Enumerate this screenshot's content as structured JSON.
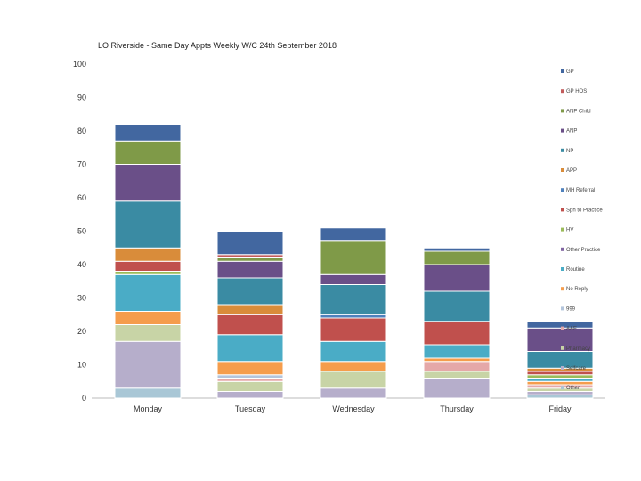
{
  "chart_data": {
    "type": "stacked-bar",
    "title": "LO Riverside - Same Day Appts Weekly W/C 24th September 2018",
    "xlabel": "",
    "ylabel": "",
    "ylim": [
      0,
      100
    ],
    "yticks": [
      0,
      10,
      20,
      30,
      40,
      50,
      60,
      70,
      80,
      90,
      100
    ],
    "grid": false,
    "legend": "right",
    "categories": [
      "Monday",
      "Tuesday",
      "Wednesday",
      "Thursday",
      "Friday"
    ],
    "series": [
      {
        "name": "Other",
        "color": "#a9c7d6",
        "values": [
          3,
          0,
          0,
          0,
          1
        ]
      },
      {
        "name": "Selfcare",
        "color": "#b6aecb",
        "values": [
          14,
          2,
          3,
          6,
          1
        ]
      },
      {
        "name": "Pharmacy",
        "color": "#c8d4a6",
        "values": [
          5,
          3,
          5,
          2,
          1
        ]
      },
      {
        "name": "A&E",
        "color": "#e5a8a8",
        "values": [
          0,
          1,
          0,
          3,
          1
        ]
      },
      {
        "name": "999",
        "color": "#b3c5dc",
        "values": [
          0,
          1,
          0,
          0,
          0
        ]
      },
      {
        "name": "No Reply",
        "color": "#f59d4c",
        "values": [
          4,
          4,
          3,
          1,
          1
        ]
      },
      {
        "name": "Routine",
        "color": "#4aacc6",
        "values": [
          11,
          8,
          6,
          4,
          1
        ]
      },
      {
        "name": "Other Practice",
        "color": "#8064a2",
        "values": [
          0,
          0,
          0,
          0,
          0
        ]
      },
      {
        "name": "HV",
        "color": "#9bbb59",
        "values": [
          1,
          0,
          0,
          0,
          1
        ]
      },
      {
        "name": "Sph to Practice",
        "color": "#c0504d",
        "values": [
          3,
          6,
          7,
          7,
          1
        ]
      },
      {
        "name": "MH Referral",
        "color": "#4f81bd",
        "values": [
          0,
          0,
          1,
          0,
          0
        ]
      },
      {
        "name": "APP",
        "color": "#d98c3a",
        "values": [
          4,
          3,
          0,
          0,
          1
        ]
      },
      {
        "name": "NP",
        "color": "#3a8ba3",
        "values": [
          14,
          8,
          9,
          9,
          5
        ]
      },
      {
        "name": "ANP",
        "color": "#6a4f88",
        "values": [
          11,
          5,
          3,
          8,
          7
        ]
      },
      {
        "name": "ANP Child",
        "color": "#7f9a48",
        "values": [
          7,
          1,
          10,
          4,
          0
        ]
      },
      {
        "name": "GP HOS",
        "color": "#c25c5c",
        "values": [
          0,
          1,
          0,
          0,
          0
        ]
      },
      {
        "name": "GP",
        "color": "#4267a0",
        "values": [
          5,
          7,
          4,
          1,
          2
        ]
      }
    ]
  }
}
